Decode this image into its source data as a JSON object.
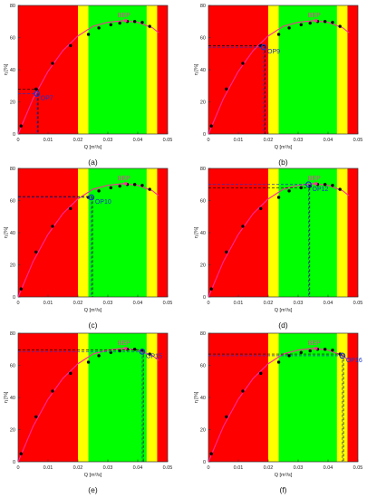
{
  "colors": {
    "red_zone": "#ff0000",
    "yellow_zone": "#ffff00",
    "green_zone": "#00ff00",
    "curve": "#ff2aa0",
    "points": "#000000",
    "op_marker": "#1a33cc",
    "dashed_black": "#000000",
    "dashed_blue": "#1a33cc"
  },
  "chart_data": [
    {
      "type": "scatter",
      "panel_label": "(a)",
      "title": "",
      "xlabel": "Q [m³/s]",
      "ylabel": "η [%]",
      "xlim": [
        0,
        0.05
      ],
      "ylim": [
        0,
        80
      ],
      "x_ticks": [
        "0",
        "0.01",
        "0.02",
        "0.03",
        "0.04",
        "0.05"
      ],
      "y_ticks": [
        "0",
        "20",
        "40",
        "60",
        "80"
      ],
      "grid": false,
      "zones": [
        {
          "color": "red",
          "from": 0,
          "to": 0.02
        },
        {
          "color": "yellow",
          "from": 0.02,
          "to": 0.0235
        },
        {
          "color": "green",
          "from": 0.0235,
          "to": 0.043
        },
        {
          "color": "yellow",
          "from": 0.043,
          "to": 0.0465
        },
        {
          "color": "red",
          "from": 0.0465,
          "to": 0.05
        }
      ],
      "measured_points": {
        "x": [
          0.001,
          0.006,
          0.0115,
          0.0175,
          0.0235,
          0.027,
          0.031,
          0.034,
          0.0365,
          0.039,
          0.0415,
          0.044
        ],
        "y": [
          5,
          28,
          44,
          55,
          62,
          66,
          68,
          69,
          70,
          70,
          69.5,
          67
        ]
      },
      "fitted_curve": {
        "x": [
          0,
          0.005,
          0.01,
          0.015,
          0.02,
          0.025,
          0.03,
          0.035,
          0.04,
          0.045,
          0.047
        ],
        "y": [
          0,
          22,
          39,
          52,
          61,
          67,
          69.5,
          70.5,
          69.5,
          66,
          63
        ]
      },
      "bep": {
        "label": "BEP",
        "x": 0.036,
        "y": 70.5
      },
      "operating_point": {
        "label": "OP7",
        "x": 0.0063,
        "y": 25,
        "dashed_y_black": 28,
        "dashed_y_blue": 25
      }
    },
    {
      "type": "scatter",
      "panel_label": "(b)",
      "title": "",
      "xlabel": "Q [m³/s]",
      "ylabel": "η [%]",
      "xlim": [
        0,
        0.05
      ],
      "ylim": [
        0,
        80
      ],
      "x_ticks": [
        "0",
        "0.01",
        "0.02",
        "0.03",
        "0.04",
        "0.05"
      ],
      "y_ticks": [
        "0",
        "20",
        "40",
        "60",
        "80"
      ],
      "grid": false,
      "zones": [
        {
          "color": "red",
          "from": 0,
          "to": 0.02
        },
        {
          "color": "yellow",
          "from": 0.02,
          "to": 0.0235
        },
        {
          "color": "green",
          "from": 0.0235,
          "to": 0.043
        },
        {
          "color": "yellow",
          "from": 0.043,
          "to": 0.0465
        },
        {
          "color": "red",
          "from": 0.0465,
          "to": 0.05
        }
      ],
      "measured_points": {
        "x": [
          0.001,
          0.006,
          0.0115,
          0.0175,
          0.0235,
          0.027,
          0.031,
          0.034,
          0.0365,
          0.039,
          0.0415,
          0.044
        ],
        "y": [
          5,
          28,
          44,
          55,
          62,
          66,
          68,
          69,
          70,
          70,
          69.5,
          67
        ]
      },
      "fitted_curve": {
        "x": [
          0,
          0.005,
          0.01,
          0.015,
          0.02,
          0.025,
          0.03,
          0.035,
          0.04,
          0.045,
          0.047
        ],
        "y": [
          0,
          22,
          39,
          52,
          61,
          67,
          69.5,
          70.5,
          69.5,
          66,
          63
        ]
      },
      "bep": {
        "label": "BEP",
        "x": 0.036,
        "y": 70.5
      },
      "operating_point": {
        "label": "OP9",
        "x": 0.0185,
        "y": 54,
        "dashed_y_black": 55,
        "dashed_y_blue": 54
      }
    },
    {
      "type": "scatter",
      "panel_label": "(c)",
      "title": "",
      "xlabel": "Q [m³/s]",
      "ylabel": "η [%]",
      "xlim": [
        0,
        0.05
      ],
      "ylim": [
        0,
        80
      ],
      "x_ticks": [
        "0",
        "0.01",
        "0.02",
        "0.03",
        "0.04",
        "0.05"
      ],
      "y_ticks": [
        "0",
        "20",
        "40",
        "60",
        "80"
      ],
      "grid": false,
      "zones": [
        {
          "color": "red",
          "from": 0,
          "to": 0.02
        },
        {
          "color": "yellow",
          "from": 0.02,
          "to": 0.0235
        },
        {
          "color": "green",
          "from": 0.0235,
          "to": 0.043
        },
        {
          "color": "yellow",
          "from": 0.043,
          "to": 0.0465
        },
        {
          "color": "red",
          "from": 0.0465,
          "to": 0.05
        }
      ],
      "measured_points": {
        "x": [
          0.001,
          0.006,
          0.0115,
          0.0175,
          0.0235,
          0.027,
          0.031,
          0.034,
          0.0365,
          0.039,
          0.0415,
          0.044
        ],
        "y": [
          5,
          28,
          44,
          55,
          62,
          66,
          68,
          69,
          70,
          70,
          69.5,
          67
        ]
      },
      "fitted_curve": {
        "x": [
          0,
          0.005,
          0.01,
          0.015,
          0.02,
          0.025,
          0.03,
          0.035,
          0.04,
          0.045,
          0.047
        ],
        "y": [
          0,
          22,
          39,
          52,
          61,
          67,
          69.5,
          70.5,
          69.5,
          66,
          63
        ]
      },
      "bep": {
        "label": "BEP",
        "x": 0.036,
        "y": 70.5
      },
      "operating_point": {
        "label": "OP10",
        "x": 0.0245,
        "y": 62,
        "dashed_y_black": 62.5,
        "dashed_y_blue": 62
      }
    },
    {
      "type": "scatter",
      "panel_label": "(d)",
      "title": "",
      "xlabel": "Q [m³/s]",
      "ylabel": "η [%]",
      "xlim": [
        0,
        0.05
      ],
      "ylim": [
        0,
        80
      ],
      "x_ticks": [
        "0",
        "0.01",
        "0.02",
        "0.03",
        "0.04",
        "0.05"
      ],
      "y_ticks": [
        "0",
        "20",
        "40",
        "60",
        "80"
      ],
      "grid": false,
      "zones": [
        {
          "color": "red",
          "from": 0,
          "to": 0.02
        },
        {
          "color": "yellow",
          "from": 0.02,
          "to": 0.0235
        },
        {
          "color": "green",
          "from": 0.0235,
          "to": 0.043
        },
        {
          "color": "yellow",
          "from": 0.043,
          "to": 0.0465
        },
        {
          "color": "red",
          "from": 0.0465,
          "to": 0.05
        }
      ],
      "measured_points": {
        "x": [
          0.001,
          0.006,
          0.0115,
          0.0175,
          0.0235,
          0.027,
          0.031,
          0.034,
          0.0365,
          0.039,
          0.0415,
          0.044
        ],
        "y": [
          5,
          28,
          44,
          55,
          62,
          66,
          68,
          69,
          70,
          70,
          69.5,
          67
        ]
      },
      "fitted_curve": {
        "x": [
          0,
          0.005,
          0.01,
          0.015,
          0.02,
          0.025,
          0.03,
          0.035,
          0.04,
          0.045,
          0.047
        ],
        "y": [
          0,
          22,
          39,
          52,
          61,
          67,
          69.5,
          70.5,
          69.5,
          66,
          63
        ]
      },
      "bep": {
        "label": "BEP",
        "x": 0.036,
        "y": 70.5
      },
      "operating_point": {
        "label": "OP12",
        "x": 0.0335,
        "y": 70,
        "dashed_y_black": 68,
        "dashed_y_blue": 70
      }
    },
    {
      "type": "scatter",
      "panel_label": "(e)",
      "title": "",
      "xlabel": "Q [m³/s]",
      "ylabel": "η [%]",
      "xlim": [
        0,
        0.05
      ],
      "ylim": [
        0,
        80
      ],
      "x_ticks": [
        "0",
        "0.01",
        "0.02",
        "0.03",
        "0.04",
        "0.05"
      ],
      "y_ticks": [
        "0",
        "20",
        "40",
        "60",
        "80"
      ],
      "grid": false,
      "zones": [
        {
          "color": "red",
          "from": 0,
          "to": 0.02
        },
        {
          "color": "yellow",
          "from": 0.02,
          "to": 0.0235
        },
        {
          "color": "green",
          "from": 0.0235,
          "to": 0.043
        },
        {
          "color": "yellow",
          "from": 0.043,
          "to": 0.0465
        },
        {
          "color": "red",
          "from": 0.0465,
          "to": 0.05
        }
      ],
      "measured_points": {
        "x": [
          0.001,
          0.006,
          0.0115,
          0.0175,
          0.0235,
          0.027,
          0.031,
          0.034,
          0.0365,
          0.039,
          0.0415,
          0.044
        ],
        "y": [
          5,
          28,
          44,
          55,
          62,
          66,
          68,
          69,
          70,
          70,
          69.5,
          67
        ]
      },
      "fitted_curve": {
        "x": [
          0,
          0.005,
          0.01,
          0.015,
          0.02,
          0.025,
          0.03,
          0.035,
          0.04,
          0.045,
          0.047
        ],
        "y": [
          0,
          22,
          39,
          52,
          61,
          67,
          69.5,
          70.5,
          69.5,
          66,
          63
        ]
      },
      "bep": {
        "label": "BEP",
        "x": 0.036,
        "y": 70.5
      },
      "operating_point": {
        "label": "OP15",
        "x": 0.0415,
        "y": 68.5,
        "dashed_y_black": 69.5,
        "dashed_y_blue": 68.5
      }
    },
    {
      "type": "scatter",
      "panel_label": "(f)",
      "title": "",
      "xlabel": "Q [m³/s]",
      "ylabel": "η [%]",
      "xlim": [
        0,
        0.05
      ],
      "ylim": [
        0,
        80
      ],
      "x_ticks": [
        "0",
        "0.01",
        "0.02",
        "0.03",
        "0.04",
        "0.05"
      ],
      "y_ticks": [
        "0",
        "20",
        "40",
        "60",
        "80"
      ],
      "grid": false,
      "zones": [
        {
          "color": "red",
          "from": 0,
          "to": 0.02
        },
        {
          "color": "yellow",
          "from": 0.02,
          "to": 0.0235
        },
        {
          "color": "green",
          "from": 0.0235,
          "to": 0.043
        },
        {
          "color": "yellow",
          "from": 0.043,
          "to": 0.0465
        },
        {
          "color": "red",
          "from": 0.0465,
          "to": 0.05
        }
      ],
      "measured_points": {
        "x": [
          0.001,
          0.006,
          0.0115,
          0.0175,
          0.0235,
          0.027,
          0.031,
          0.034,
          0.0365,
          0.039,
          0.0415,
          0.044
        ],
        "y": [
          5,
          28,
          44,
          55,
          62,
          66,
          68,
          69,
          70,
          70,
          69.5,
          67
        ]
      },
      "fitted_curve": {
        "x": [
          0,
          0.005,
          0.01,
          0.015,
          0.02,
          0.025,
          0.03,
          0.035,
          0.04,
          0.045,
          0.047
        ],
        "y": [
          0,
          22,
          39,
          52,
          61,
          67,
          69.5,
          70.5,
          69.5,
          66,
          63
        ]
      },
      "bep": {
        "label": "BEP",
        "x": 0.036,
        "y": 70.5
      },
      "operating_point": {
        "label": "OP16",
        "x": 0.0448,
        "y": 66,
        "dashed_y_black": 67,
        "dashed_y_blue": 66
      }
    }
  ]
}
